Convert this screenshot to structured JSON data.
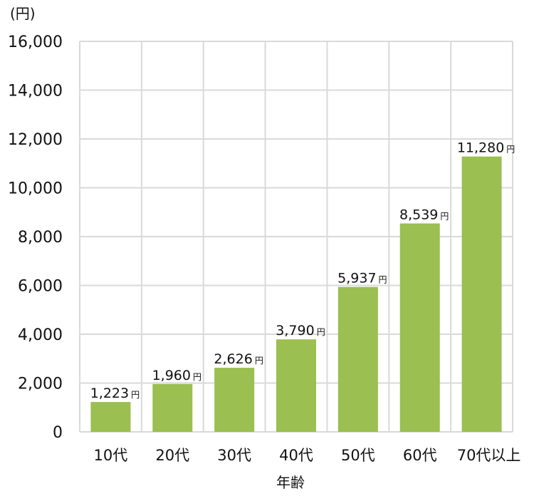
{
  "chart_data": {
    "type": "bar",
    "title": "",
    "unit_label": "(円)",
    "xlabel": "年齢",
    "ylabel": "",
    "categories": [
      "10代",
      "20代",
      "30代",
      "40代",
      "50代",
      "60代",
      "70代以上"
    ],
    "values": [
      1223,
      1960,
      2626,
      3790,
      5937,
      8539,
      11280
    ],
    "data_labels": [
      "1,223",
      "1,960",
      "2,626",
      "3,790",
      "5,937",
      "8,539",
      "11,280"
    ],
    "data_label_unit": "円",
    "ylim": [
      0,
      16000
    ],
    "yticks": [
      0,
      2000,
      4000,
      6000,
      8000,
      10000,
      12000,
      14000,
      16000
    ],
    "ytick_labels": [
      "0",
      "2,000",
      "4,000",
      "6,000",
      "8,000",
      "10,000",
      "12,000",
      "14,000",
      "16,000"
    ],
    "grid": true,
    "legend": "none",
    "colors": {
      "bar": "#9bbf50",
      "grid": "#d9d9d9"
    }
  }
}
